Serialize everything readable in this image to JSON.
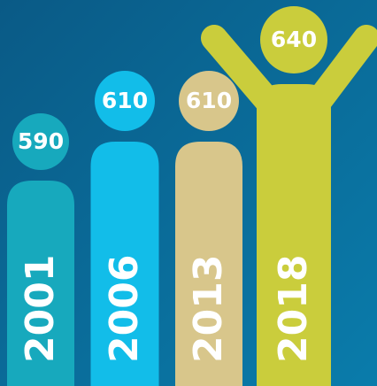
{
  "chart_data": {
    "type": "bar",
    "categories": [
      "2001",
      "2006",
      "2013",
      "2018"
    ],
    "values": [
      590,
      610,
      610,
      640
    ],
    "colors": [
      "#17a9bd",
      "#12bde9",
      "#d8c68b",
      "#cacd3c"
    ]
  }
}
